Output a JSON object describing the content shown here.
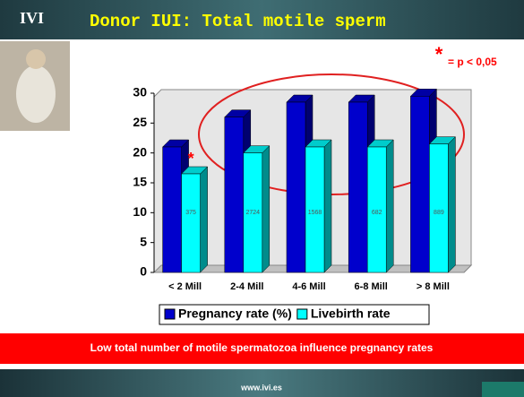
{
  "logo": "IVI",
  "chart_data": {
    "type": "bar",
    "title": "Donor IUI: Total motile sperm",
    "categories": [
      "< 2 Mill",
      "2-4 Mill",
      "4-6 Mill",
      "6-8 Mill",
      "> 8 Mill"
    ],
    "series": [
      {
        "name": "Pregnancy rate (%)",
        "color": "#0000cc",
        "values": [
          21,
          26,
          28.5,
          28.5,
          29.5
        ]
      },
      {
        "name": "Livebirth rate",
        "color": "#00ffff",
        "values": [
          16.5,
          20,
          21,
          21,
          21.5
        ]
      }
    ],
    "bar_labels": [
      375,
      2724,
      1568,
      682,
      889
    ],
    "ylim": [
      0,
      30
    ],
    "yticks": [
      0,
      5,
      10,
      15,
      20,
      25,
      30
    ],
    "grid": false,
    "legend": "bottom",
    "significance_mark": "*",
    "significance_note": "= p < 0,05"
  },
  "banner": "Low total number of motile spermatozoa influence pregnancy rates",
  "footer": "www.ivi.es"
}
